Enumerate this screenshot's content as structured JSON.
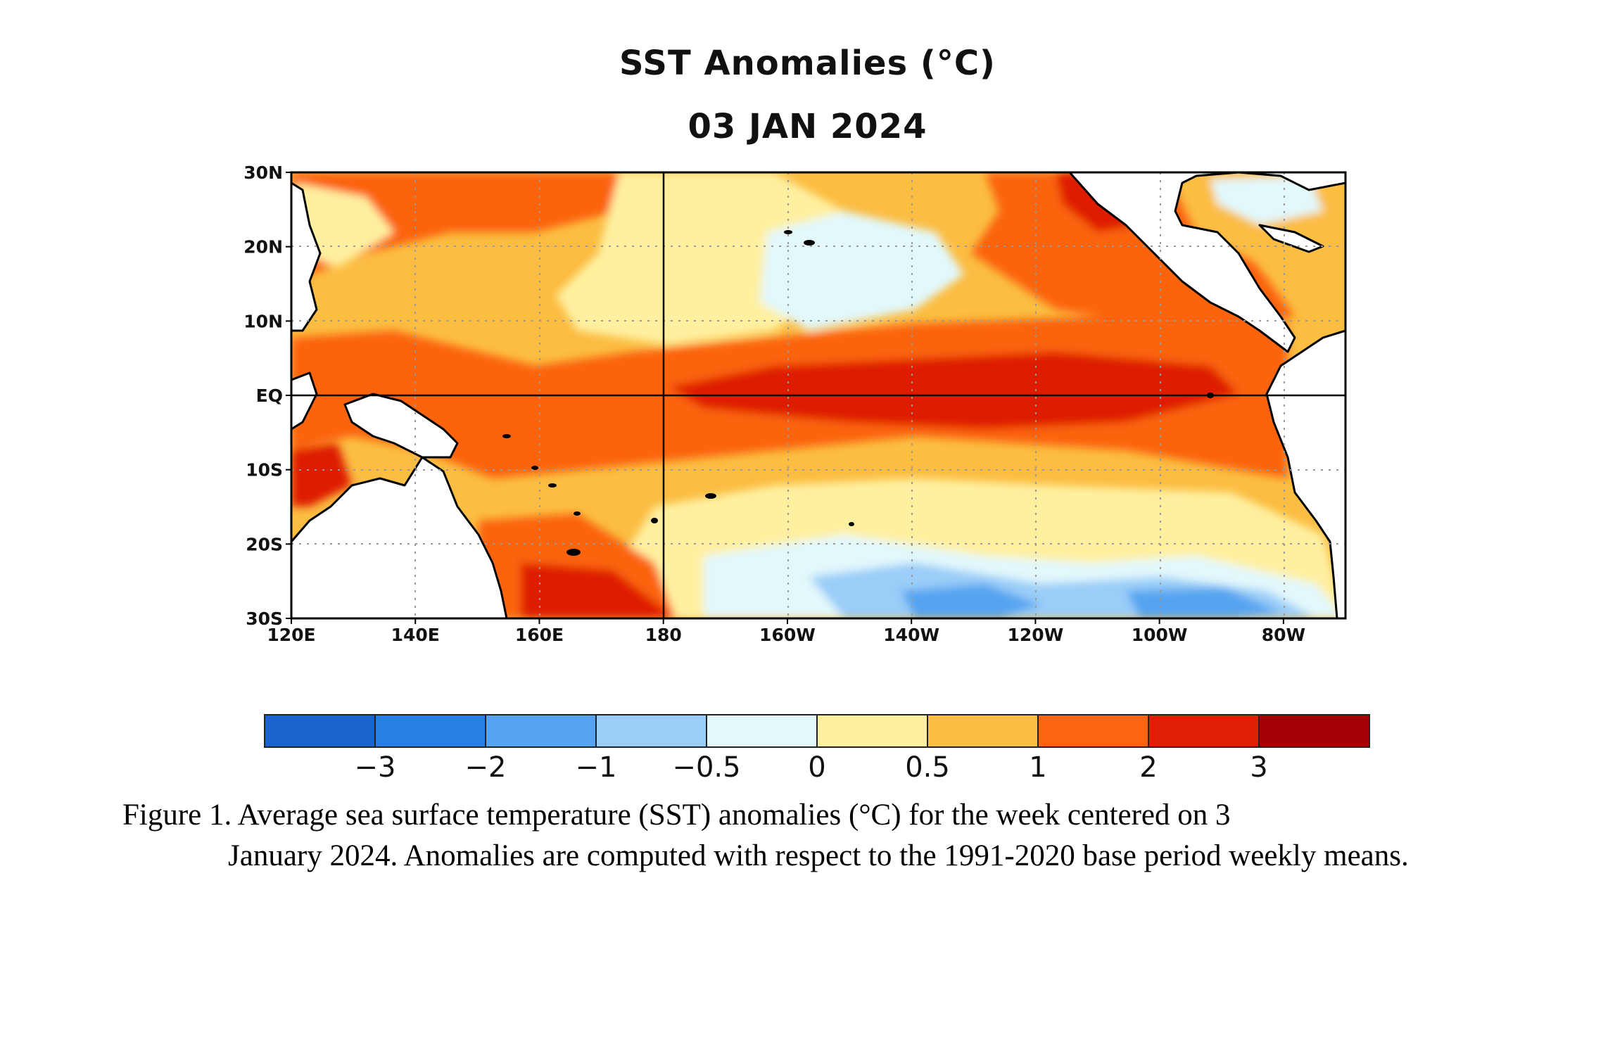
{
  "title": "SST Anomalies (°C)",
  "date": "03 JAN 2024",
  "map": {
    "lat_labels": [
      "30N",
      "20N",
      "10N",
      "EQ",
      "10S",
      "20S",
      "30S"
    ],
    "lon_labels": [
      "120E",
      "140E",
      "160E",
      "180",
      "160W",
      "140W",
      "120W",
      "100W",
      "80W"
    ],
    "lon_range": [
      120,
      290
    ],
    "lat_range": [
      -30,
      30
    ]
  },
  "colorbar": {
    "colors": [
      "#1a64cc",
      "#2a7fe6",
      "#56a4f0",
      "#9acdf8",
      "#e2f8fb",
      "#fff0a0",
      "#fbbd42",
      "#fb6410",
      "#de1e05",
      "#a50005"
    ],
    "tick_labels": [
      "−3",
      "−2",
      "−1",
      "−0.5",
      "0",
      "0.5",
      "1",
      "2",
      "3"
    ]
  },
  "caption": {
    "first": "Figure 1. Average sea surface temperature (SST) anomalies (°C) for the week centered on 3",
    "rest": "January 2024.  Anomalies are computed with respect to the 1991-2020 base period weekly means."
  }
}
